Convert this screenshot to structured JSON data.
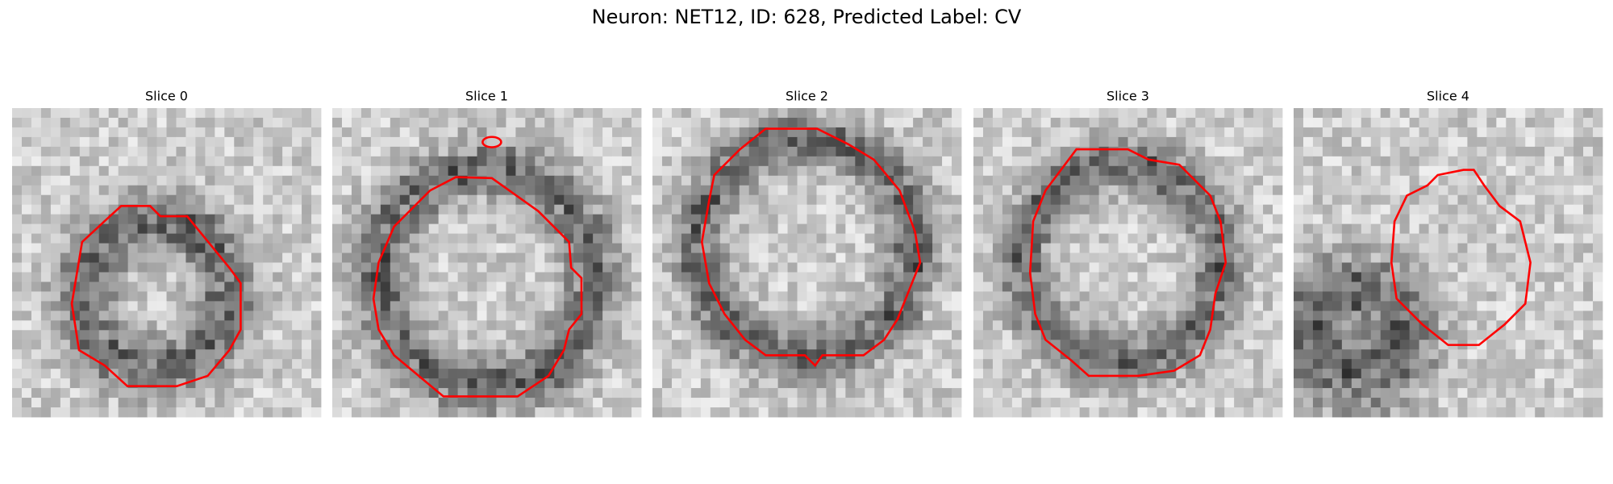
{
  "title": "Neuron: NET12, ID: 628, Predicted Label: CV",
  "panels": [
    {
      "title": "Slice 0"
    },
    {
      "title": "Slice 1"
    },
    {
      "title": "Slice 2"
    },
    {
      "title": "Slice 3"
    },
    {
      "title": "Slice 4"
    }
  ]
}
